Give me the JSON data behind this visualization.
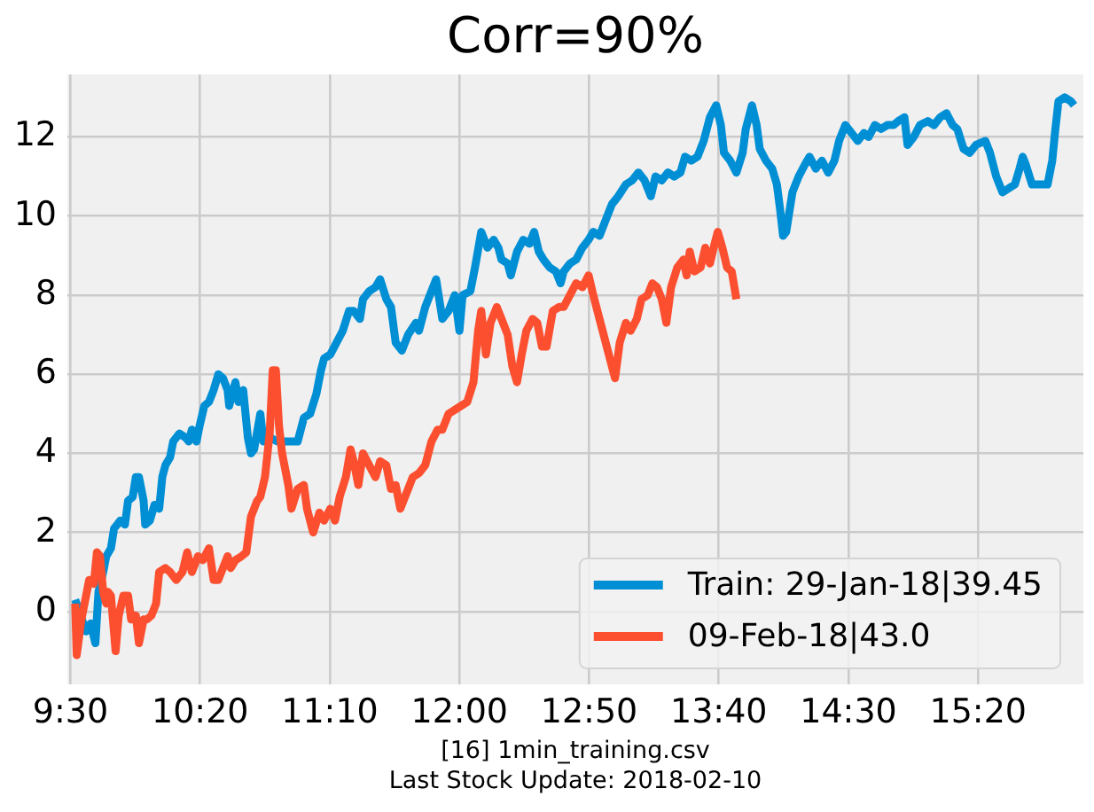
{
  "chart_data": {
    "type": "line",
    "title": "Corr=90%",
    "annotations": [
      "[16] 1min_training.csv",
      "Last Stock Update: 2018-02-10"
    ],
    "xlim": [
      9.48,
      16.01
    ],
    "ylim": [
      -1.84,
      13.58
    ],
    "xticks": [
      {
        "value": 9.5,
        "label": "9:30"
      },
      {
        "value": 10.3333,
        "label": "10:20"
      },
      {
        "value": 11.1667,
        "label": "11:10"
      },
      {
        "value": 12,
        "label": "12:00"
      },
      {
        "value": 12.8333,
        "label": "12:50"
      },
      {
        "value": 13.6667,
        "label": "13:40"
      },
      {
        "value": 14.5,
        "label": "14:30"
      },
      {
        "value": 15.3333,
        "label": "15:20"
      }
    ],
    "yticks": [
      0,
      2,
      4,
      6,
      8,
      10,
      12
    ],
    "grid": true,
    "legend": "bottom right",
    "marker": "none",
    "series": [
      {
        "name": "Train: 29-Jan-18|39.45",
        "color": "#008fd5",
        "x": [
          9.53,
          9.6,
          9.63,
          9.66,
          9.68,
          9.71,
          9.73,
          9.76,
          9.78,
          9.82,
          9.85,
          9.87,
          9.9,
          9.92,
          9.94,
          9.97,
          9.98,
          10.01,
          10.04,
          10.07,
          10.09,
          10.11,
          10.14,
          10.16,
          10.2,
          10.24,
          10.26,
          10.28,
          10.31,
          10.33,
          10.36,
          10.39,
          10.42,
          10.45,
          10.48,
          10.51,
          10.52,
          10.56,
          10.58,
          10.61,
          10.64,
          10.66,
          10.68,
          10.72,
          10.74,
          10.78,
          10.83,
          10.89,
          10.96,
          11.0,
          11.04,
          11.08,
          11.11,
          11.13,
          11.17,
          11.21,
          11.25,
          11.29,
          11.32,
          11.36,
          11.38,
          11.42,
          11.46,
          11.49,
          11.53,
          11.56,
          11.59,
          11.63,
          11.67,
          11.72,
          11.74,
          11.78,
          11.82,
          11.85,
          11.87,
          11.89,
          11.93,
          11.97,
          12.0,
          12.02,
          12.07,
          12.1,
          12.14,
          12.18,
          12.22,
          12.25,
          12.27,
          12.31,
          12.33,
          12.37,
          12.41,
          12.45,
          12.48,
          12.51,
          12.54,
          12.58,
          12.62,
          12.65,
          12.67,
          12.71,
          12.75,
          12.79,
          12.83,
          12.86,
          12.9,
          12.94,
          12.98,
          13.02,
          13.07,
          13.11,
          13.15,
          13.19,
          13.23,
          13.26,
          13.3,
          13.34,
          13.38,
          13.42,
          13.45,
          13.49,
          13.53,
          13.57,
          13.61,
          13.65,
          13.68,
          13.7,
          13.74,
          13.78,
          13.82,
          13.84,
          13.88,
          13.91,
          13.93,
          13.97,
          14.01,
          14.04,
          14.06,
          14.08,
          14.1,
          14.14,
          14.18,
          14.22,
          14.25,
          14.29,
          14.33,
          14.37,
          14.41,
          14.44,
          14.48,
          14.52,
          14.56,
          14.6,
          14.63,
          14.67,
          14.71,
          14.75,
          14.79,
          14.82,
          14.86,
          14.88,
          14.92,
          14.96,
          15.01,
          15.05,
          15.09,
          15.13,
          15.17,
          15.2,
          15.24,
          15.28,
          15.32,
          15.38,
          15.41,
          15.45,
          15.49,
          15.53,
          15.57,
          15.6,
          15.62,
          15.64,
          15.68,
          15.72,
          15.78,
          15.79,
          15.81,
          15.83,
          15.85,
          15.89,
          15.93,
          15.95
        ],
        "values": [
          0.3,
          -0.5,
          -0.3,
          -0.8,
          0.5,
          1.0,
          1.4,
          1.6,
          2.1,
          2.3,
          2.2,
          2.8,
          2.9,
          3.4,
          3.4,
          2.8,
          2.2,
          2.3,
          2.7,
          2.6,
          3.4,
          3.7,
          3.9,
          4.3,
          4.5,
          4.4,
          4.3,
          4.6,
          4.3,
          4.7,
          5.2,
          5.3,
          5.6,
          6.0,
          5.9,
          5.6,
          5.2,
          5.8,
          5.3,
          5.6,
          4.4,
          4.0,
          4.1,
          5.0,
          4.3,
          4.4,
          4.3,
          4.3,
          4.3,
          4.9,
          5.0,
          5.5,
          6.1,
          6.4,
          6.5,
          6.8,
          7.1,
          7.6,
          7.6,
          7.4,
          7.9,
          8.1,
          8.2,
          8.4,
          7.9,
          7.7,
          6.8,
          6.6,
          7.0,
          7.3,
          7.1,
          7.7,
          8.1,
          8.4,
          7.9,
          7.4,
          7.6,
          8.0,
          7.1,
          8.0,
          8.1,
          8.7,
          9.6,
          9.2,
          9.4,
          9.2,
          8.9,
          8.8,
          8.5,
          9.1,
          9.4,
          9.3,
          9.6,
          9.1,
          8.9,
          8.7,
          8.6,
          8.3,
          8.6,
          8.8,
          8.9,
          9.2,
          9.4,
          9.6,
          9.5,
          9.9,
          10.3,
          10.5,
          10.8,
          10.9,
          11.1,
          10.9,
          10.5,
          11.0,
          10.9,
          11.1,
          11.0,
          11.1,
          11.5,
          11.4,
          11.5,
          11.9,
          12.5,
          12.8,
          12.3,
          11.6,
          11.4,
          11.1,
          11.6,
          12.2,
          12.8,
          12.3,
          11.7,
          11.4,
          11.2,
          10.8,
          10.2,
          9.5,
          9.6,
          10.6,
          11.0,
          11.3,
          11.5,
          11.2,
          11.4,
          11.1,
          11.4,
          11.9,
          12.3,
          12.1,
          11.9,
          12.1,
          12.0,
          12.3,
          12.2,
          12.3,
          12.3,
          12.4,
          12.5,
          11.8,
          12.0,
          12.3,
          12.4,
          12.3,
          12.5,
          12.6,
          12.3,
          12.2,
          11.7,
          11.6,
          11.8,
          11.9,
          11.6,
          11.0,
          10.6,
          10.7,
          10.8,
          11.2,
          11.5,
          11.3,
          10.8,
          10.8,
          10.8,
          11.0,
          11.4,
          12.2,
          12.9,
          13.0,
          12.9,
          12.8
        ]
      },
      {
        "name": "09-Feb-18|43.0",
        "color": "#fc4f30",
        "x": [
          9.53,
          9.54,
          9.57,
          9.6,
          9.62,
          9.65,
          9.67,
          9.69,
          9.71,
          9.73,
          9.74,
          9.76,
          9.79,
          9.81,
          9.84,
          9.87,
          9.89,
          9.92,
          9.94,
          9.97,
          9.99,
          10.02,
          10.05,
          10.07,
          10.11,
          10.14,
          10.18,
          10.22,
          10.25,
          10.28,
          10.32,
          10.35,
          10.39,
          10.42,
          10.45,
          10.48,
          10.51,
          10.53,
          10.56,
          10.6,
          10.63,
          10.66,
          10.7,
          10.72,
          10.75,
          10.78,
          10.8,
          10.82,
          10.84,
          10.86,
          10.9,
          10.92,
          10.96,
          11.0,
          11.02,
          11.06,
          11.1,
          11.13,
          11.17,
          11.2,
          11.23,
          11.27,
          11.3,
          11.32,
          11.35,
          11.38,
          11.42,
          11.46,
          11.49,
          11.53,
          11.56,
          11.59,
          11.62,
          11.67,
          11.7,
          11.74,
          11.78,
          11.82,
          11.86,
          11.89,
          11.93,
          11.97,
          12.01,
          12.05,
          12.09,
          12.12,
          12.14,
          12.17,
          12.2,
          12.24,
          12.27,
          12.31,
          12.34,
          12.37,
          12.4,
          12.43,
          12.47,
          12.5,
          12.53,
          12.56,
          12.6,
          12.64,
          12.67,
          12.71,
          12.75,
          12.79,
          12.83,
          12.86,
          12.9,
          12.94,
          12.98,
          13.0,
          13.03,
          13.07,
          13.1,
          13.14,
          13.17,
          13.21,
          13.24,
          13.27,
          13.3,
          13.33,
          13.36,
          13.4,
          13.44,
          13.46,
          13.48,
          13.51,
          13.55,
          13.58,
          13.61,
          13.64,
          13.66,
          13.69,
          13.72,
          13.75,
          13.78
        ],
        "values": [
          0.2,
          -1.1,
          -0.2,
          0.4,
          0.8,
          0.7,
          1.5,
          1.4,
          0.5,
          0.2,
          0.5,
          0.4,
          -1.0,
          -0.1,
          0.4,
          0.4,
          -0.2,
          -0.1,
          -0.8,
          -0.2,
          -0.2,
          -0.1,
          0.2,
          1.0,
          1.1,
          1.0,
          0.8,
          1.0,
          1.5,
          1.0,
          1.4,
          1.3,
          1.6,
          0.8,
          0.8,
          1.1,
          1.4,
          1.1,
          1.3,
          1.4,
          1.5,
          2.4,
          2.8,
          2.9,
          3.4,
          4.5,
          6.1,
          6.1,
          4.7,
          4.0,
          3.2,
          2.6,
          3.1,
          3.2,
          2.6,
          2.0,
          2.5,
          2.3,
          2.6,
          2.3,
          2.9,
          3.4,
          4.1,
          3.8,
          3.2,
          4.0,
          3.7,
          3.4,
          3.8,
          3.7,
          3.1,
          3.2,
          2.6,
          3.1,
          3.4,
          3.5,
          3.7,
          4.3,
          4.6,
          4.6,
          5.0,
          5.1,
          5.2,
          5.3,
          5.8,
          7.1,
          7.6,
          6.5,
          7.3,
          7.7,
          7.4,
          7.0,
          6.2,
          5.8,
          6.5,
          7.1,
          7.4,
          7.3,
          6.7,
          6.7,
          7.6,
          7.7,
          7.7,
          8.0,
          8.3,
          8.2,
          8.5,
          8.0,
          7.4,
          6.8,
          6.2,
          5.9,
          6.8,
          7.3,
          7.1,
          7.4,
          7.9,
          8.0,
          8.3,
          8.2,
          7.9,
          7.3,
          8.2,
          8.7,
          8.9,
          8.5,
          9.1,
          8.6,
          8.7,
          9.2,
          8.8,
          9.3,
          9.6,
          9.2,
          8.7,
          8.6,
          7.9
        ]
      }
    ]
  }
}
